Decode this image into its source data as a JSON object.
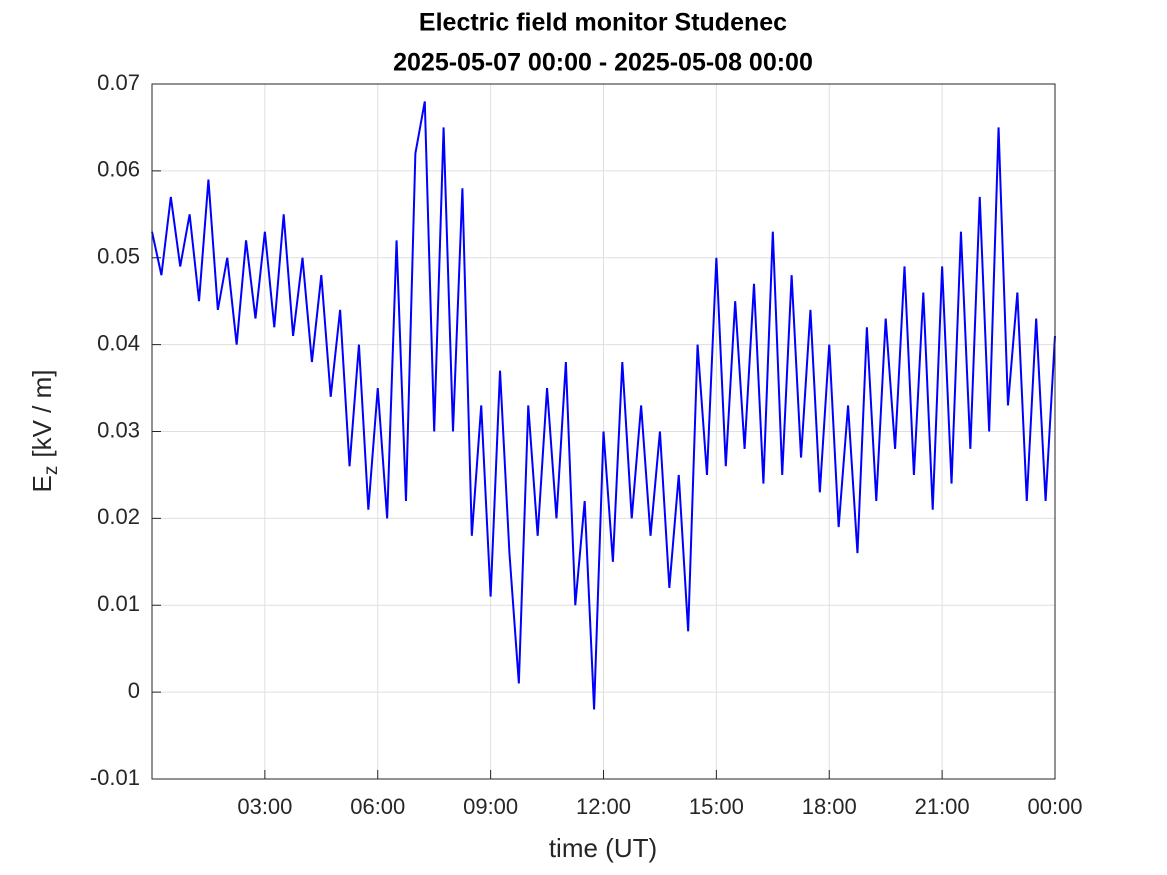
{
  "chart_data": {
    "type": "line",
    "title": "Electric field monitor Studenec",
    "subtitle": "2025-05-07 00:00 - 2025-05-08 00:00",
    "xlabel": "time (UT)",
    "ylabel": {
      "main": "E",
      "sub": "z",
      "unit": "[kV / m]"
    },
    "xlim": [
      0,
      24
    ],
    "xticks": [
      {
        "value": 3,
        "label": "03:00"
      },
      {
        "value": 6,
        "label": "06:00"
      },
      {
        "value": 9,
        "label": "09:00"
      },
      {
        "value": 12,
        "label": "12:00"
      },
      {
        "value": 15,
        "label": "15:00"
      },
      {
        "value": 18,
        "label": "18:00"
      },
      {
        "value": 21,
        "label": "21:00"
      },
      {
        "value": 24,
        "label": "00:00"
      }
    ],
    "ylim": [
      -0.01,
      0.07
    ],
    "yticks": [
      -0.01,
      0,
      0.01,
      0.02,
      0.03,
      0.04,
      0.05,
      0.06,
      0.07
    ],
    "grid": true,
    "x": [
      0,
      0.25,
      0.5,
      0.75,
      1,
      1.25,
      1.5,
      1.75,
      2,
      2.25,
      2.5,
      2.75,
      3,
      3.25,
      3.5,
      3.75,
      4,
      4.25,
      4.5,
      4.75,
      5,
      5.25,
      5.5,
      5.75,
      6,
      6.25,
      6.5,
      6.75,
      7,
      7.25,
      7.5,
      7.75,
      8,
      8.25,
      8.5,
      8.75,
      9,
      9.25,
      9.5,
      9.75,
      10,
      10.25,
      10.5,
      10.75,
      11,
      11.25,
      11.5,
      11.75,
      12,
      12.25,
      12.5,
      12.75,
      13,
      13.25,
      13.5,
      13.75,
      14,
      14.25,
      14.5,
      14.75,
      15,
      15.25,
      15.5,
      15.75,
      16,
      16.25,
      16.5,
      16.75,
      17,
      17.25,
      17.5,
      17.75,
      18,
      18.25,
      18.5,
      18.75,
      19,
      19.25,
      19.5,
      19.75,
      20,
      20.25,
      20.5,
      20.75,
      21,
      21.25,
      21.5,
      21.75,
      22,
      22.25,
      22.5,
      22.75,
      23,
      23.25,
      23.5,
      23.75,
      24
    ],
    "series": [
      {
        "color": "#0000ff",
        "values": [
          0.053,
          0.048,
          0.057,
          0.049,
          0.055,
          0.045,
          0.059,
          0.044,
          0.05,
          0.04,
          0.052,
          0.043,
          0.053,
          0.042,
          0.055,
          0.041,
          0.05,
          0.038,
          0.048,
          0.034,
          0.044,
          0.026,
          0.04,
          0.021,
          0.035,
          0.02,
          0.052,
          0.022,
          0.062,
          0.068,
          0.03,
          0.065,
          0.03,
          0.058,
          0.018,
          0.033,
          0.011,
          0.037,
          0.016,
          0.001,
          0.033,
          0.018,
          0.035,
          0.02,
          0.038,
          0.01,
          0.022,
          -0.002,
          0.03,
          0.015,
          0.038,
          0.02,
          0.033,
          0.018,
          0.03,
          0.012,
          0.025,
          0.007,
          0.04,
          0.025,
          0.05,
          0.026,
          0.045,
          0.028,
          0.047,
          0.024,
          0.053,
          0.025,
          0.048,
          0.027,
          0.044,
          0.023,
          0.04,
          0.019,
          0.033,
          0.016,
          0.042,
          0.022,
          0.043,
          0.028,
          0.049,
          0.025,
          0.046,
          0.021,
          0.049,
          0.024,
          0.053,
          0.028,
          0.057,
          0.03,
          0.065,
          0.033,
          0.046,
          0.022,
          0.043,
          0.022,
          0.041
        ]
      }
    ]
  }
}
